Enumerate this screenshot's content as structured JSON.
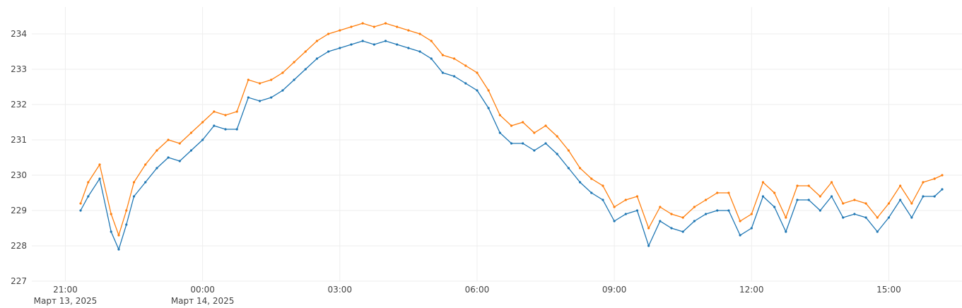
{
  "chart_data": {
    "type": "line",
    "x": [
      "2025-03-13 21:20",
      "2025-03-13 21:30",
      "2025-03-13 21:45",
      "2025-03-13 22:00",
      "2025-03-13 22:10",
      "2025-03-13 22:20",
      "2025-03-13 22:30",
      "2025-03-13 22:45",
      "2025-03-13 23:00",
      "2025-03-13 23:15",
      "2025-03-13 23:30",
      "2025-03-13 23:45",
      "2025-03-14 00:00",
      "2025-03-14 00:15",
      "2025-03-14 00:30",
      "2025-03-14 00:45",
      "2025-03-14 01:00",
      "2025-03-14 01:15",
      "2025-03-14 01:30",
      "2025-03-14 01:45",
      "2025-03-14 02:00",
      "2025-03-14 02:15",
      "2025-03-14 02:30",
      "2025-03-14 02:45",
      "2025-03-14 03:00",
      "2025-03-14 03:15",
      "2025-03-14 03:30",
      "2025-03-14 03:45",
      "2025-03-14 04:00",
      "2025-03-14 04:15",
      "2025-03-14 04:30",
      "2025-03-14 04:45",
      "2025-03-14 05:00",
      "2025-03-14 05:15",
      "2025-03-14 05:30",
      "2025-03-14 05:45",
      "2025-03-14 06:00",
      "2025-03-14 06:15",
      "2025-03-14 06:30",
      "2025-03-14 06:45",
      "2025-03-14 07:00",
      "2025-03-14 07:15",
      "2025-03-14 07:30",
      "2025-03-14 07:45",
      "2025-03-14 08:00",
      "2025-03-14 08:15",
      "2025-03-14 08:30",
      "2025-03-14 08:45",
      "2025-03-14 09:00",
      "2025-03-14 09:15",
      "2025-03-14 09:30",
      "2025-03-14 09:45",
      "2025-03-14 10:00",
      "2025-03-14 10:15",
      "2025-03-14 10:30",
      "2025-03-14 10:45",
      "2025-03-14 11:00",
      "2025-03-14 11:15",
      "2025-03-14 11:30",
      "2025-03-14 11:45",
      "2025-03-14 12:00",
      "2025-03-14 12:15",
      "2025-03-14 12:30",
      "2025-03-14 12:45",
      "2025-03-14 13:00",
      "2025-03-14 13:15",
      "2025-03-14 13:30",
      "2025-03-14 13:45",
      "2025-03-14 14:00",
      "2025-03-14 14:15",
      "2025-03-14 14:30",
      "2025-03-14 14:45",
      "2025-03-14 15:00",
      "2025-03-14 15:15",
      "2025-03-14 15:30",
      "2025-03-14 15:45",
      "2025-03-14 16:00",
      "2025-03-14 16:10"
    ],
    "series": [
      {
        "color": "#1f77b4",
        "values": [
          229.0,
          229.4,
          229.9,
          228.4,
          227.9,
          228.6,
          229.4,
          229.8,
          230.2,
          230.5,
          230.4,
          230.7,
          231.0,
          231.4,
          231.3,
          231.3,
          232.2,
          232.1,
          232.2,
          232.4,
          232.7,
          233.0,
          233.3,
          233.5,
          233.6,
          233.7,
          233.8,
          233.7,
          233.8,
          233.7,
          233.6,
          233.5,
          233.3,
          232.9,
          232.8,
          232.6,
          232.4,
          231.9,
          231.2,
          230.9,
          230.9,
          230.7,
          230.9,
          230.6,
          230.2,
          229.8,
          229.5,
          229.3,
          228.7,
          228.9,
          229.0,
          228.0,
          228.7,
          228.5,
          228.4,
          228.7,
          228.9,
          229.0,
          229.0,
          228.3,
          228.5,
          229.4,
          229.1,
          228.4,
          229.3,
          229.3,
          229.0,
          229.4,
          228.8,
          228.9,
          228.8,
          228.4,
          228.8,
          229.3,
          228.8,
          229.4,
          229.4,
          229.6
        ]
      },
      {
        "color": "#ff7f0e",
        "values": [
          229.2,
          229.8,
          230.3,
          228.9,
          228.3,
          229.0,
          229.8,
          230.3,
          230.7,
          231.0,
          230.9,
          231.2,
          231.5,
          231.8,
          231.7,
          231.8,
          232.7,
          232.6,
          232.7,
          232.9,
          233.2,
          233.5,
          233.8,
          234.0,
          234.1,
          234.2,
          234.3,
          234.2,
          234.3,
          234.2,
          234.1,
          234.0,
          233.8,
          233.4,
          233.3,
          233.1,
          232.9,
          232.4,
          231.7,
          231.4,
          231.5,
          231.2,
          231.4,
          231.1,
          230.7,
          230.2,
          229.9,
          229.7,
          229.1,
          229.3,
          229.4,
          228.5,
          229.1,
          228.9,
          228.8,
          229.1,
          229.3,
          229.5,
          229.5,
          228.7,
          228.9,
          229.8,
          229.5,
          228.8,
          229.7,
          229.7,
          229.4,
          229.8,
          229.2,
          229.3,
          229.2,
          228.8,
          229.2,
          229.7,
          229.2,
          229.8,
          229.9,
          230.0
        ]
      }
    ],
    "xlim": [
      "2025-03-13 20:16",
      "2025-03-14 16:36"
    ],
    "xticks": [
      {
        "value": "2025-03-13 21:00",
        "label": "21:00\nМарт 13, 2025"
      },
      {
        "value": "2025-03-14 00:00",
        "label": "00:00\nМарт 14, 2025"
      },
      {
        "value": "2025-03-14 03:00",
        "label": "03:00"
      },
      {
        "value": "2025-03-14 06:00",
        "label": "06:00"
      },
      {
        "value": "2025-03-14 09:00",
        "label": "09:00"
      },
      {
        "value": "2025-03-14 12:00",
        "label": "12:00"
      },
      {
        "value": "2025-03-14 15:00",
        "label": "15:00"
      }
    ],
    "ylim": [
      227,
      234.76
    ],
    "yticks": [
      227,
      228,
      229,
      230,
      231,
      232,
      233,
      234
    ],
    "grid": true
  }
}
